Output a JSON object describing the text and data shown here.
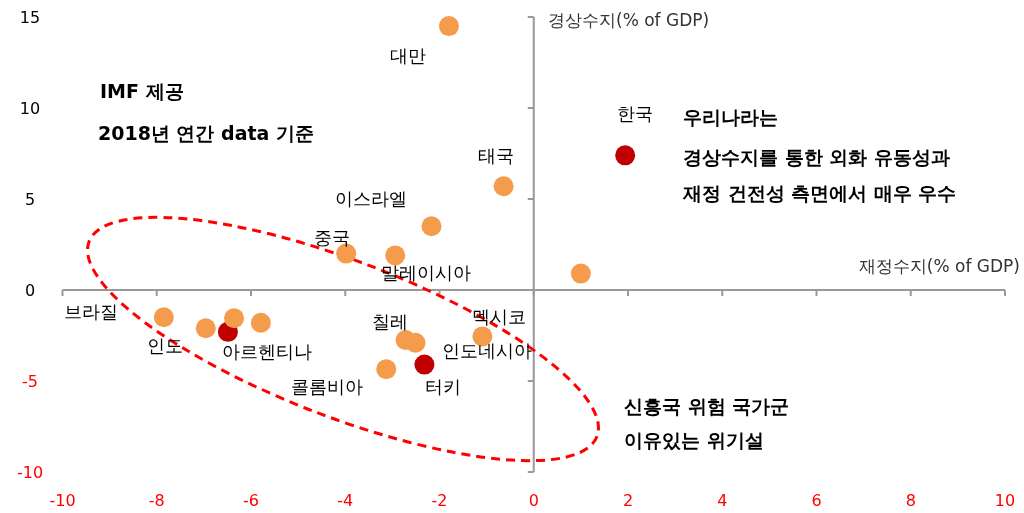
{
  "chart_data": {
    "type": "scatter",
    "xlabel": "재정수지(% of GDP)",
    "ylabel": "경상수지(% of GDP)",
    "xlim": [
      -10,
      10
    ],
    "ylim": [
      -10,
      15
    ],
    "xticks": [
      -10,
      -8,
      -6,
      -4,
      -2,
      0,
      2,
      4,
      6,
      8,
      10
    ],
    "yticks": [
      -10,
      -5,
      0,
      5,
      10,
      15
    ],
    "marker": "circle",
    "x": [
      -1.8,
      -0.64,
      1.94,
      -2.17,
      -3.98,
      -2.94,
      1.0,
      -7.85,
      -6.96,
      -6.49,
      -6.36,
      -5.79,
      -2.72,
      -2.51,
      -1.09,
      -2.32,
      -3.13
    ],
    "values": [
      14.5,
      5.7,
      7.4,
      3.5,
      2.0,
      1.9,
      0.9,
      -1.5,
      -2.1,
      -2.3,
      -1.55,
      -1.8,
      -2.75,
      -2.9,
      -2.55,
      -4.1,
      -4.35
    ],
    "colors": [
      "#f59b4c",
      "#f59b4c",
      "#c00000",
      "#f59b4c",
      "#f59b4c",
      "#f59b4c",
      "#f59b4c",
      "#f59b4c",
      "#f59b4c",
      "#c00000",
      "#f59b4c",
      "#f59b4c",
      "#f59b4c",
      "#f59b4c",
      "#f59b4c",
      "#c00000",
      "#f59b4c"
    ],
    "annotations": [
      {
        "text": "대만",
        "x": -1.8,
        "y": 14.5
      },
      {
        "text": "태국",
        "x": -0.64,
        "y": 5.7
      },
      {
        "text": "한국",
        "x": 1.94,
        "y": 7.4
      },
      {
        "text": "이스라엘",
        "x": -2.17,
        "y": 3.5
      },
      {
        "text": "중국",
        "x": -3.98,
        "y": 2.0
      },
      {
        "text": "말레이시아",
        "x": -2.94,
        "y": 1.9
      },
      {
        "text": "브라질",
        "x": -7.85,
        "y": -1.5
      },
      {
        "text": "인도",
        "x": -6.96,
        "y": -2.1
      },
      {
        "text": "아르헨티나",
        "x": -6.49,
        "y": -2.3
      },
      {
        "text": "칠레",
        "x": -2.72,
        "y": -2.75
      },
      {
        "text": "멕시코",
        "x": -1.09,
        "y": -2.55
      },
      {
        "text": "인도네시아",
        "x": -2.51,
        "y": -2.9
      },
      {
        "text": "콜롬비아",
        "x": -3.13,
        "y": -4.35
      },
      {
        "text": "터키",
        "x": -2.32,
        "y": -4.1
      },
      "IMF 제공",
      "2018년 연간 data 기준",
      "우리나라는",
      "경상수지를 통한 외화 유동성과",
      "재정 건전성 측면에서 매우 우수",
      "신흥국 위험 국가군",
      "이유있는 위기설"
    ]
  }
}
